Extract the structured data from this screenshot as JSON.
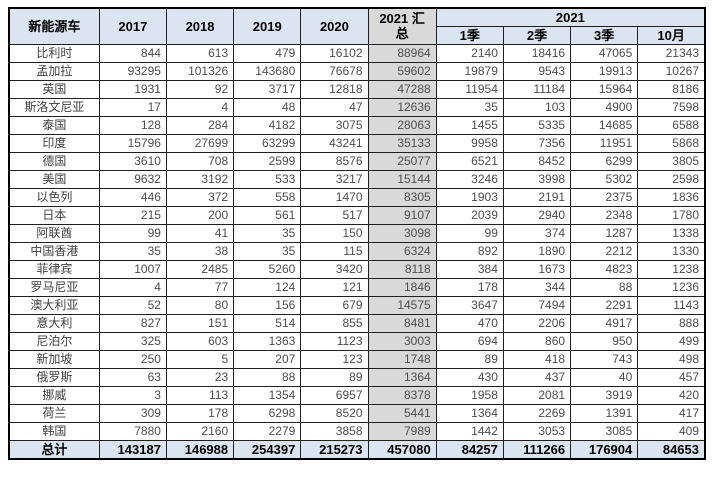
{
  "chart_data": {
    "type": "table",
    "corner_label": "新能源车",
    "year_columns": [
      "2017",
      "2018",
      "2019",
      "2020"
    ],
    "summary_column": "2021 汇总",
    "group_column": {
      "label": "2021",
      "sub_columns": [
        "1季",
        "2季",
        "3季",
        "10月"
      ]
    },
    "value_columns_order": [
      "2017",
      "2018",
      "2019",
      "2020",
      "2021 汇总",
      "2021 1季",
      "2021 2季",
      "2021 3季",
      "2021 10月"
    ],
    "rows": [
      {
        "name": "比利时",
        "values": [
          844,
          613,
          479,
          16102,
          88964,
          2140,
          18416,
          47065,
          21343
        ]
      },
      {
        "name": "孟加拉",
        "values": [
          93295,
          101326,
          143680,
          76678,
          59602,
          19879,
          9543,
          19913,
          10267
        ]
      },
      {
        "name": "英国",
        "values": [
          1931,
          92,
          3717,
          12818,
          47288,
          11954,
          11184,
          15964,
          8186
        ]
      },
      {
        "name": "斯洛文尼亚",
        "values": [
          17,
          4,
          48,
          47,
          12636,
          35,
          103,
          4900,
          7598
        ]
      },
      {
        "name": "泰国",
        "values": [
          128,
          284,
          4182,
          3075,
          28063,
          1455,
          5335,
          14685,
          6588
        ]
      },
      {
        "name": "印度",
        "values": [
          15796,
          27699,
          63299,
          43241,
          35133,
          9958,
          7356,
          11951,
          5868
        ]
      },
      {
        "name": "德国",
        "values": [
          3610,
          708,
          2599,
          8576,
          25077,
          6521,
          8452,
          6299,
          3805
        ]
      },
      {
        "name": "美国",
        "values": [
          9632,
          3192,
          533,
          3217,
          15144,
          3246,
          3998,
          5302,
          2598
        ]
      },
      {
        "name": "以色列",
        "values": [
          446,
          372,
          558,
          1470,
          8305,
          1903,
          2191,
          2375,
          1836
        ]
      },
      {
        "name": "日本",
        "values": [
          215,
          200,
          561,
          517,
          9107,
          2039,
          2940,
          2348,
          1780
        ]
      },
      {
        "name": "阿联酋",
        "values": [
          99,
          41,
          35,
          150,
          3098,
          99,
          374,
          1287,
          1338
        ]
      },
      {
        "name": "中国香港",
        "values": [
          35,
          38,
          35,
          115,
          6324,
          892,
          1890,
          2212,
          1330
        ]
      },
      {
        "name": "菲律宾",
        "values": [
          1007,
          2485,
          5260,
          3420,
          8118,
          384,
          1673,
          4823,
          1238
        ]
      },
      {
        "name": "罗马尼亚",
        "values": [
          4,
          77,
          124,
          121,
          1846,
          178,
          344,
          88,
          1236
        ]
      },
      {
        "name": "澳大利亚",
        "values": [
          52,
          80,
          156,
          679,
          14575,
          3647,
          7494,
          2291,
          1143
        ]
      },
      {
        "name": "意大利",
        "values": [
          827,
          151,
          514,
          855,
          8481,
          470,
          2206,
          4917,
          888
        ]
      },
      {
        "name": "尼泊尔",
        "values": [
          325,
          603,
          1363,
          1123,
          3003,
          694,
          860,
          950,
          499
        ]
      },
      {
        "name": "新加坡",
        "values": [
          250,
          5,
          207,
          123,
          1748,
          89,
          418,
          743,
          498
        ]
      },
      {
        "name": "俄罗斯",
        "values": [
          63,
          23,
          88,
          89,
          1364,
          430,
          437,
          40,
          457
        ]
      },
      {
        "name": "挪威",
        "values": [
          3,
          113,
          1354,
          6957,
          8378,
          1958,
          2081,
          3919,
          420
        ]
      },
      {
        "name": "荷兰",
        "values": [
          309,
          178,
          6298,
          8520,
          5441,
          1364,
          2269,
          1391,
          417
        ]
      },
      {
        "name": "韩国",
        "values": [
          7880,
          2160,
          2279,
          3858,
          7989,
          1442,
          3053,
          3085,
          409
        ]
      }
    ],
    "total": {
      "name": "总计",
      "values": [
        143187,
        146988,
        254397,
        215273,
        457080,
        84257,
        111266,
        176904,
        84653
      ]
    },
    "colors": {
      "header_bg": "#dbe5f1",
      "summary_bg": "#d9d9d9",
      "total_bg": "#dbe5f1",
      "border": "#1f1f1f",
      "number_text": "#4d4d4d"
    }
  }
}
